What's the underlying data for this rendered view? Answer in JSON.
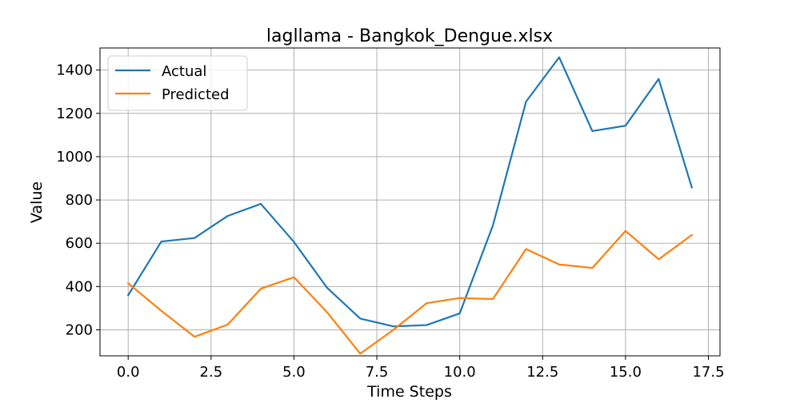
{
  "chart_data": {
    "type": "line",
    "title": "lagllama - Bangkok_Dengue.xlsx",
    "xlabel": "Time Steps",
    "ylabel": "Value",
    "x": [
      0,
      1,
      2,
      3,
      4,
      5,
      6,
      7,
      8,
      9,
      10,
      11,
      12,
      13,
      14,
      15,
      16,
      17
    ],
    "xlim": [
      -0.85,
      17.85
    ],
    "ylim": [
      80,
      1502
    ],
    "xticks": [
      0,
      2.5,
      5,
      7.5,
      10,
      12.5,
      15,
      17.5
    ],
    "xtick_labels": [
      "0.0",
      "2.5",
      "5.0",
      "7.5",
      "10.0",
      "12.5",
      "15.0",
      "17.5"
    ],
    "yticks": [
      200,
      400,
      600,
      800,
      1000,
      1200,
      1400
    ],
    "ytick_labels": [
      "200",
      "400",
      "600",
      "800",
      "1000",
      "1200",
      "1400"
    ],
    "grid": true,
    "legend_position": "top-left",
    "series": [
      {
        "name": "Actual",
        "color": "#1f77b4",
        "values": [
          360,
          608,
          624,
          726,
          782,
          606,
          394,
          252,
          216,
          222,
          276,
          682,
          1254,
          1459,
          1118,
          1143,
          1359,
          858
        ]
      },
      {
        "name": "Predicted",
        "color": "#ff7f0e",
        "values": [
          415,
          288,
          168,
          224,
          390,
          443,
          281,
          90,
          200,
          323,
          347,
          342,
          573,
          502,
          486,
          657,
          526,
          638
        ]
      }
    ]
  }
}
